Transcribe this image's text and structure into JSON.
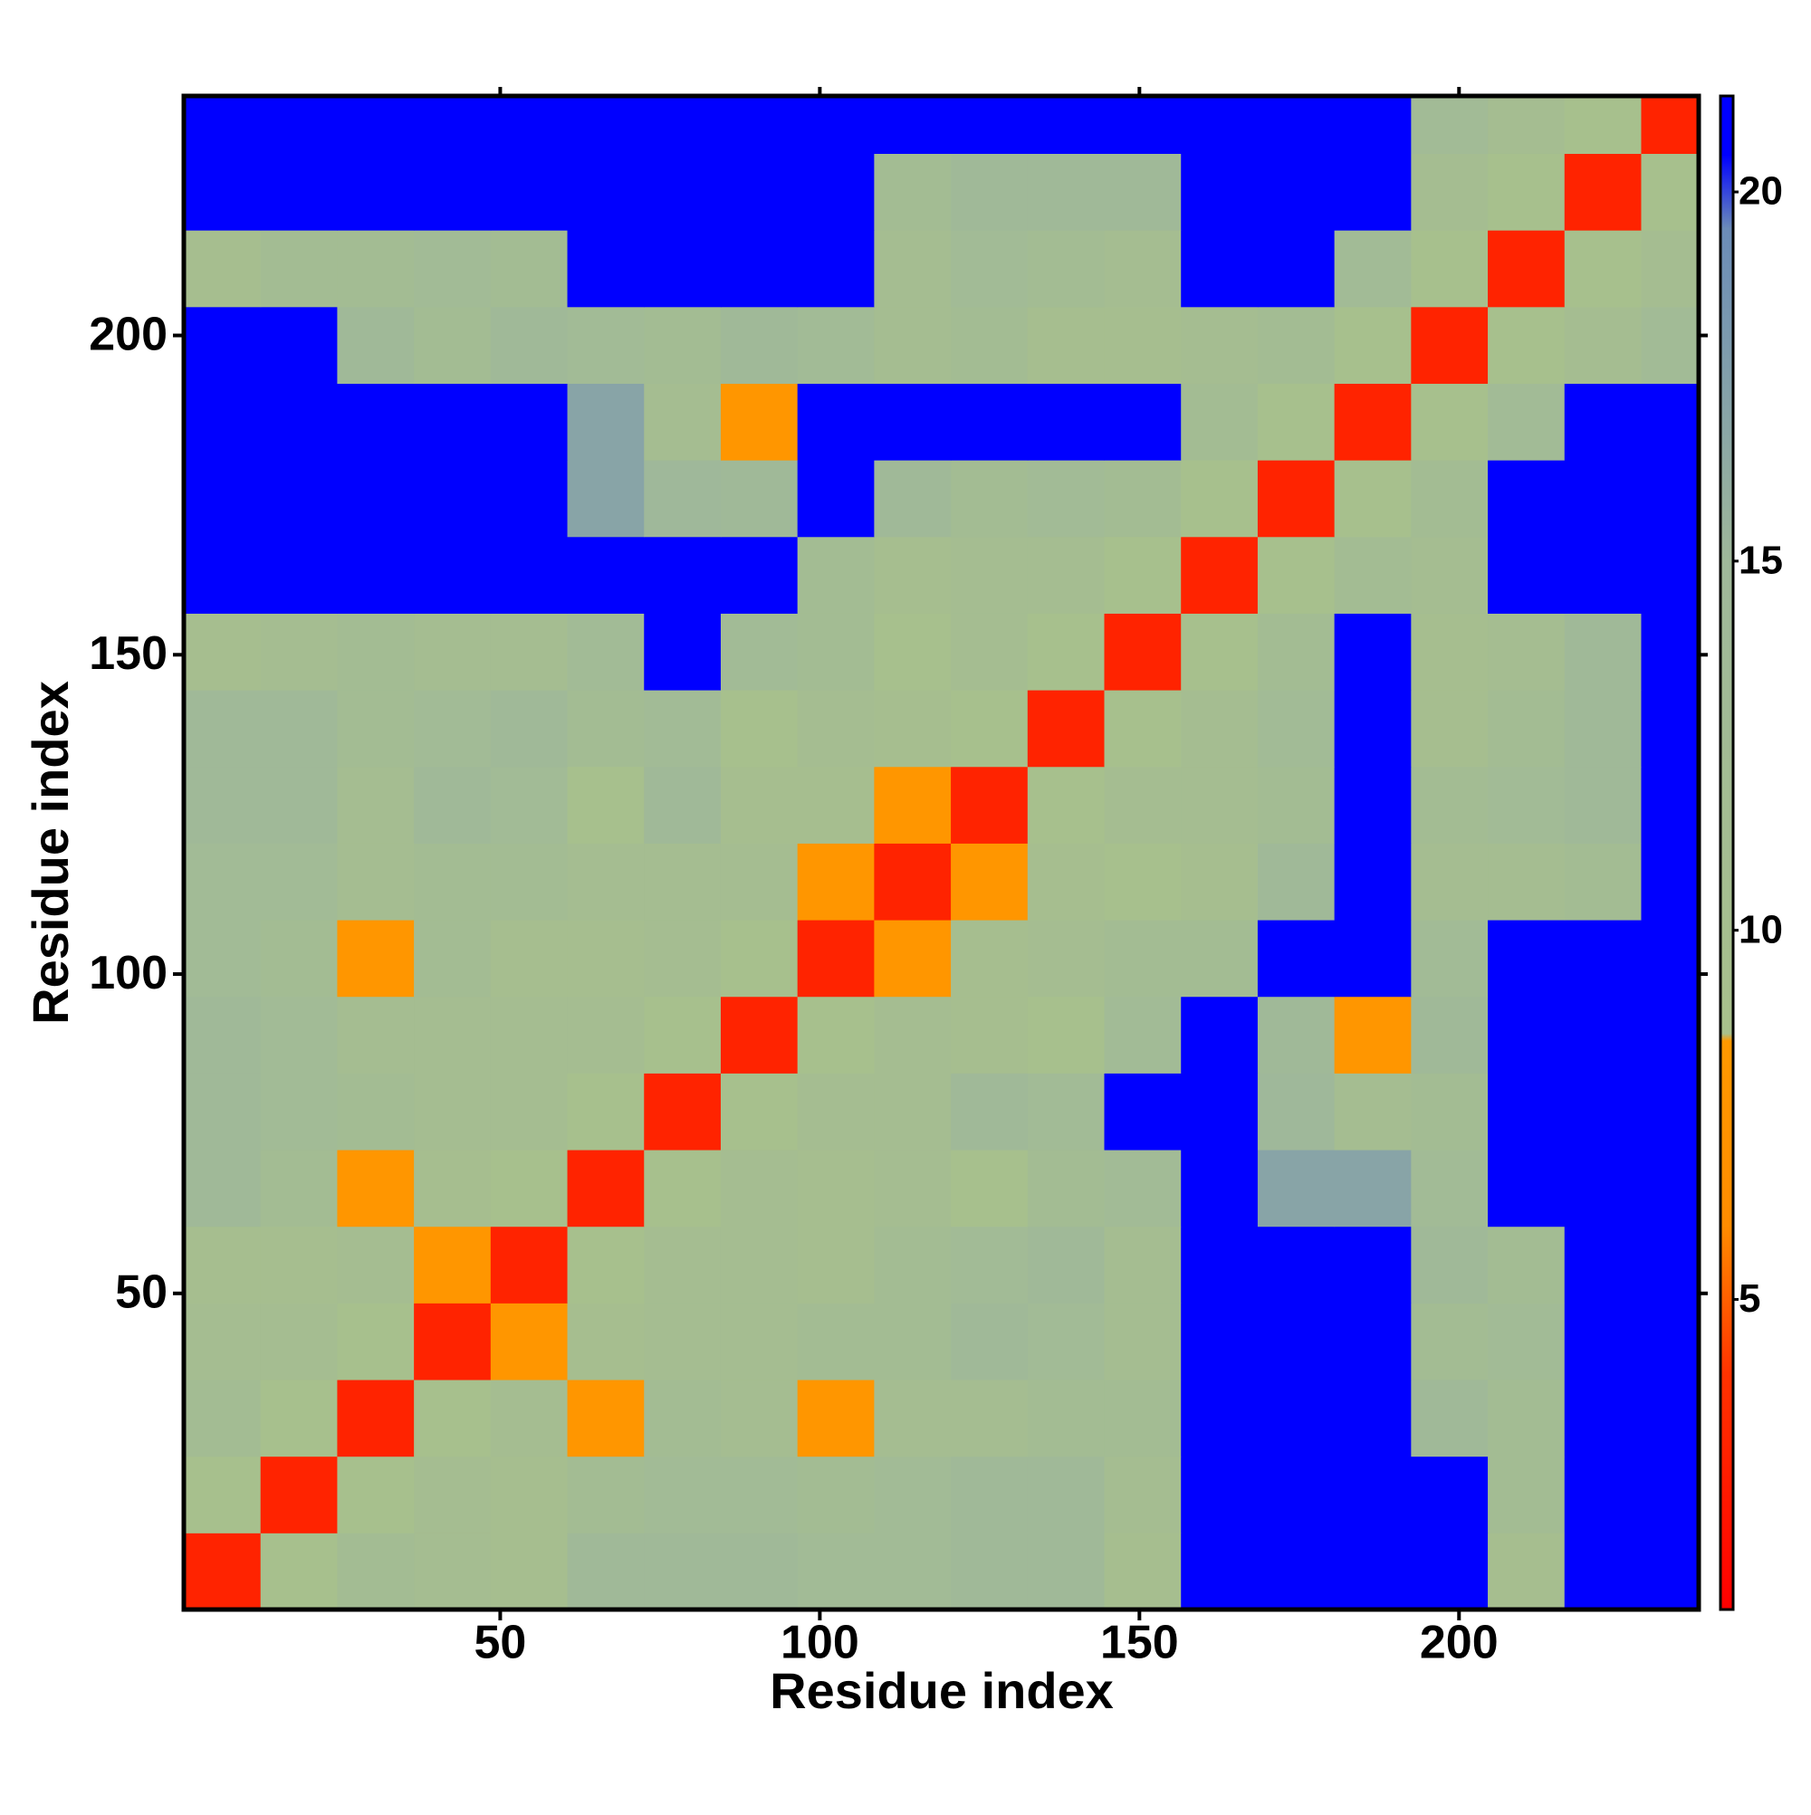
{
  "chart_data": {
    "type": "heatmap",
    "xlabel": "Residue index",
    "ylabel": "Residue index",
    "x_bins": [
      0.5,
      12.5,
      24.5,
      36.5,
      48.5,
      60.5,
      72.5,
      84.5,
      96.5,
      108.5,
      120.5,
      132.5,
      144.5,
      156.5,
      168.5,
      180.5,
      192.5,
      204.5,
      216.5,
      228.5,
      237.5
    ],
    "y_bins": [
      0.5,
      12.5,
      24.5,
      36.5,
      48.5,
      60.5,
      72.5,
      84.5,
      96.5,
      108.5,
      120.5,
      132.5,
      144.5,
      156.5,
      168.5,
      180.5,
      192.5,
      204.5,
      216.5,
      228.5,
      237.5
    ],
    "values": [
      [
        3,
        9,
        12,
        11,
        10,
        14,
        14,
        14,
        13,
        13,
        14,
        14,
        10,
        21,
        21,
        21,
        21,
        10,
        21,
        21
      ],
      [
        9,
        3,
        9,
        11,
        10,
        12,
        13,
        13,
        12,
        13,
        14,
        14,
        11,
        21,
        21,
        21,
        21,
        12,
        21,
        21
      ],
      [
        12,
        9,
        3,
        9,
        11,
        8,
        12,
        11,
        8,
        11,
        11,
        12,
        12,
        21,
        21,
        21,
        14,
        12,
        21,
        21
      ],
      [
        11,
        11,
        9,
        3,
        8,
        10,
        11,
        11,
        12,
        12,
        14,
        13,
        11,
        21,
        21,
        21,
        12,
        13,
        21,
        21
      ],
      [
        10,
        10,
        11,
        8,
        3,
        9,
        11,
        11,
        10,
        12,
        13,
        14,
        11,
        21,
        21,
        21,
        14,
        12,
        21,
        21
      ],
      [
        14,
        12,
        8,
        10,
        9,
        3,
        9,
        11,
        10,
        11,
        9,
        12,
        13,
        21,
        17,
        17,
        13,
        21,
        21,
        21
      ],
      [
        14,
        13,
        12,
        11,
        11,
        9,
        3,
        9,
        11,
        11,
        14,
        13,
        21,
        21,
        15,
        11,
        12,
        21,
        21,
        21
      ],
      [
        14,
        13,
        11,
        11,
        11,
        11,
        9,
        3,
        9,
        11,
        10,
        9,
        13,
        21,
        14,
        8,
        14,
        21,
        21,
        21
      ],
      [
        13,
        12,
        8,
        12,
        10,
        10,
        11,
        9,
        3,
        8,
        10,
        11,
        12,
        12,
        21,
        21,
        13,
        21,
        21,
        21
      ],
      [
        13,
        13,
        11,
        12,
        12,
        11,
        11,
        11,
        8,
        3,
        8,
        10,
        9,
        10,
        14,
        21,
        11,
        11,
        12,
        21
      ],
      [
        14,
        14,
        11,
        14,
        13,
        9,
        14,
        10,
        10,
        8,
        3,
        9,
        11,
        11,
        12,
        21,
        12,
        13,
        14,
        21
      ],
      [
        14,
        14,
        12,
        13,
        14,
        12,
        13,
        9,
        11,
        10,
        9,
        3,
        9,
        11,
        13,
        21,
        10,
        12,
        14,
        21
      ],
      [
        10,
        11,
        12,
        11,
        11,
        13,
        21,
        13,
        12,
        9,
        11,
        9,
        3,
        9,
        12,
        21,
        10,
        11,
        14,
        21
      ],
      [
        21,
        21,
        21,
        21,
        21,
        21,
        21,
        21,
        12,
        10,
        11,
        11,
        9,
        3,
        9,
        12,
        11,
        21,
        21,
        21
      ],
      [
        21,
        21,
        21,
        21,
        21,
        17,
        15,
        14,
        21,
        14,
        12,
        13,
        12,
        9,
        3,
        9,
        12,
        21,
        21,
        21
      ],
      [
        21,
        21,
        21,
        21,
        21,
        17,
        11,
        8,
        21,
        21,
        21,
        21,
        21,
        12,
        9,
        3,
        9,
        13,
        21,
        21
      ],
      [
        21,
        21,
        14,
        12,
        14,
        13,
        12,
        14,
        13,
        11,
        12,
        10,
        10,
        11,
        12,
        9,
        3,
        9,
        11,
        13
      ],
      [
        10,
        12,
        12,
        13,
        12,
        21,
        21,
        21,
        21,
        11,
        13,
        12,
        11,
        21,
        21,
        13,
        9,
        3,
        9,
        11
      ],
      [
        21,
        21,
        21,
        21,
        21,
        21,
        21,
        21,
        21,
        12,
        14,
        14,
        14,
        21,
        21,
        21,
        11,
        9,
        3,
        9
      ],
      [
        21,
        21,
        21,
        21,
        21,
        21,
        21,
        21,
        21,
        21,
        21,
        21,
        21,
        21,
        21,
        21,
        13,
        11,
        9,
        3
      ]
    ],
    "xlim": [
      0.5,
      237.5
    ],
    "ylim": [
      0.5,
      237.5
    ],
    "xticks": [
      50,
      100,
      150,
      200
    ],
    "yticks": [
      50,
      100,
      150,
      200
    ],
    "zlim": [
      0.8,
      21.3
    ],
    "zticks": [
      5,
      10,
      15,
      20
    ],
    "colorscale": [
      [
        0.8,
        "#ff0000"
      ],
      [
        4,
        "#ff3300"
      ],
      [
        6,
        "#ff8c00"
      ],
      [
        8.5,
        "#ff9900"
      ],
      [
        8.6,
        "#a8c08c"
      ],
      [
        15,
        "#9fb89a"
      ],
      [
        19.5,
        "#6b8cb8"
      ],
      [
        20.5,
        "#0000ff"
      ],
      [
        21.3,
        "#0000ff"
      ]
    ]
  }
}
